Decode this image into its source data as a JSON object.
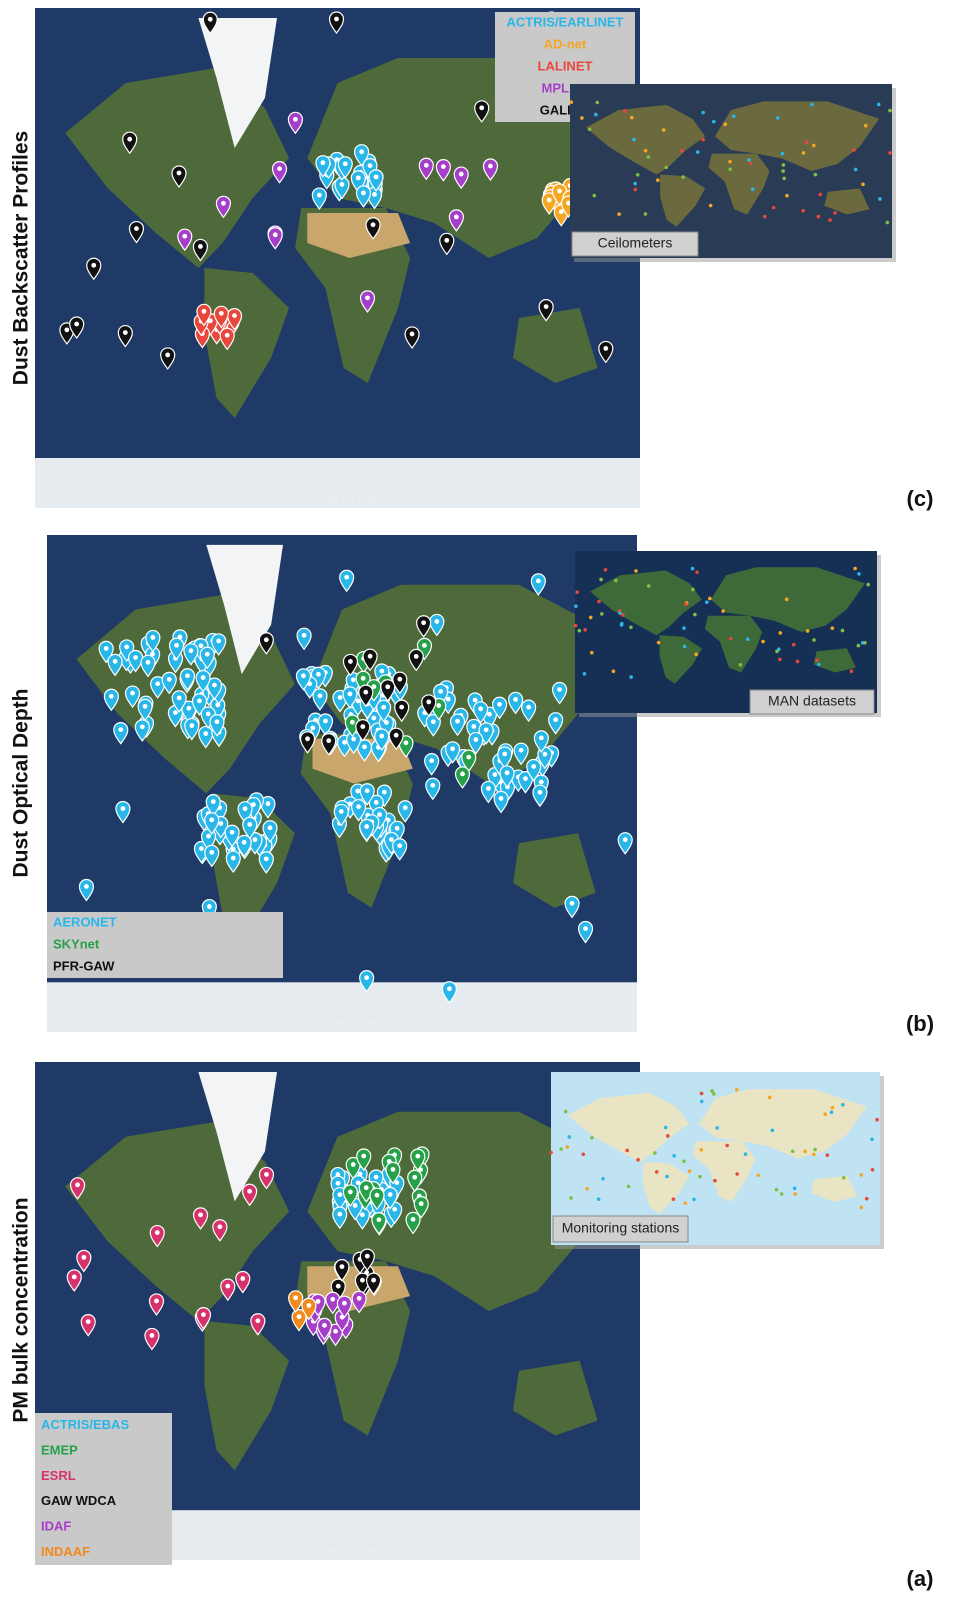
{
  "panels": [
    {
      "label": "(c)",
      "ylabel": "Dust Backscatter Profiles",
      "inset": "Ceilometers",
      "credit": "Google My Maps",
      "legend": [
        {
          "name": "ACTRIS/EARLINET",
          "color": "#29b6e8"
        },
        {
          "name": "AD-net",
          "color": "#f5a623"
        },
        {
          "name": "LALINET",
          "color": "#e8473c"
        },
        {
          "name": "MPLnet",
          "color": "#a53fc9"
        },
        {
          "name": "GALION",
          "color": "#111111"
        }
      ]
    },
    {
      "label": "(b)",
      "ylabel": "Dust Optical Depth",
      "inset": "MAN datasets",
      "credit": "Google My Maps",
      "legend": [
        {
          "name": "AERONET",
          "color": "#29b6e8"
        },
        {
          "name": "SKYnet",
          "color": "#27a04a"
        },
        {
          "name": "PFR-GAW",
          "color": "#111111"
        }
      ]
    },
    {
      "label": "(a)",
      "ylabel": "PM bulk concentration",
      "inset": "Monitoring stations",
      "credit": "Google My Maps",
      "legend": [
        {
          "name": "ACTRIS/EBAS",
          "color": "#29b6e8"
        },
        {
          "name": "EMEP",
          "color": "#27a04a"
        },
        {
          "name": "ESRL",
          "color": "#d6336c"
        },
        {
          "name": "GAW WDCA",
          "color": "#111111"
        },
        {
          "name": "IDAF",
          "color": "#a53fc9"
        },
        {
          "name": "INDAAF",
          "color": "#f08a1c"
        }
      ]
    }
  ]
}
